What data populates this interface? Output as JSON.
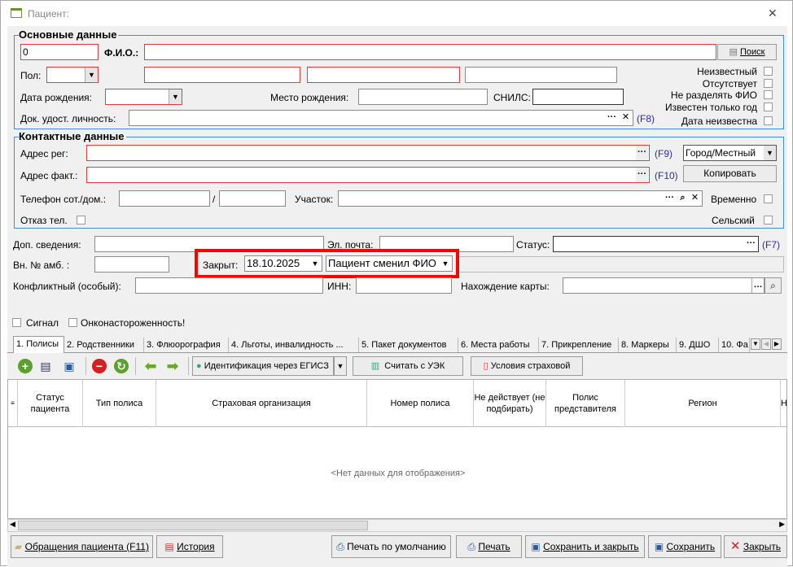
{
  "window": {
    "title": "Пациент:",
    "close": "✕"
  },
  "basic": {
    "title": "Основные данные",
    "id_value": "0",
    "fio_label": "Ф.И.О.:",
    "search_button": "Поиск",
    "sex_label": "Пол:",
    "birth_label": "Дата рождения:",
    "birthplace_label": "Место рождения:",
    "snils_label": "СНИЛС:",
    "doc_label": "Док. удост. личность:",
    "doc_hotkey": "(F8)",
    "flags": [
      "Неизвестный",
      "Отсутствует",
      "Не разделять ФИО",
      "Известен только год",
      "Дата неизвестна"
    ]
  },
  "contact": {
    "title": "Контактные данные",
    "addr_reg_label": "Адрес рег:",
    "addr_reg_hotkey": "(F9)",
    "locality_value": "Город/Местный",
    "addr_fact_label": "Адрес факт.:",
    "addr_fact_hotkey": "(F10)",
    "copy_button": "Копировать",
    "phone_label": "Телефон сот./дом.:",
    "phone_sep": "/",
    "district_label": "Участок:",
    "temporary_label": "Временно",
    "refuse_phone_label": "Отказ тел.",
    "rural_label": "Сельский"
  },
  "extra": {
    "additional_label": "Доп. сведения:",
    "email_label": "Эл. почта:",
    "status_label": "Статус:",
    "status_hotkey": "(F7)",
    "amb_label": "Вн. № амб. :",
    "closed_label": "Закрыт:",
    "closed_date": "18.10.2025",
    "closed_reason": "Пациент сменил ФИО",
    "conflict_label": "Конфликтный (особый):",
    "inn_label": "ИНН:",
    "card_location_label": "Нахождение карты:",
    "signal_label": "Сигнал",
    "onco_label": "Онконастороженность!"
  },
  "tabs": [
    "1. Полисы",
    "2. Родственники",
    "3. Флюорография",
    "4. Льготы, инвалидность ...",
    "5. Пакет документов",
    "6. Места работы",
    "7. Прикрепление",
    "8. Маркеры",
    "9. ДШО",
    "10. Фа"
  ],
  "toolbar": {
    "identify": "Идентификация через ЕГИСЗ",
    "read_card": "Считать с УЭК",
    "insurance_terms": "Условия страховой"
  },
  "grid": {
    "columns": [
      "Статус пациента",
      "Тип полиса",
      "Страховая организация",
      "Номер полиса",
      "Не действует (не подбирать)",
      "Полис представителя",
      "Регион",
      "Н кс"
    ],
    "empty": "<Нет данных для отображения>"
  },
  "footer": {
    "appeals": "Обращения пациента (F11)",
    "history": "История",
    "print_default": "Печать по умолчанию",
    "print": "Печать",
    "save_close": "Сохранить и закрыть",
    "save": "Сохранить",
    "close": "Закрыть"
  },
  "colors": {
    "required_border": "#e83a3a",
    "group_border": "#3c8ed8",
    "highlight": "#ff0000",
    "hotkey": "#2a2aa0"
  }
}
